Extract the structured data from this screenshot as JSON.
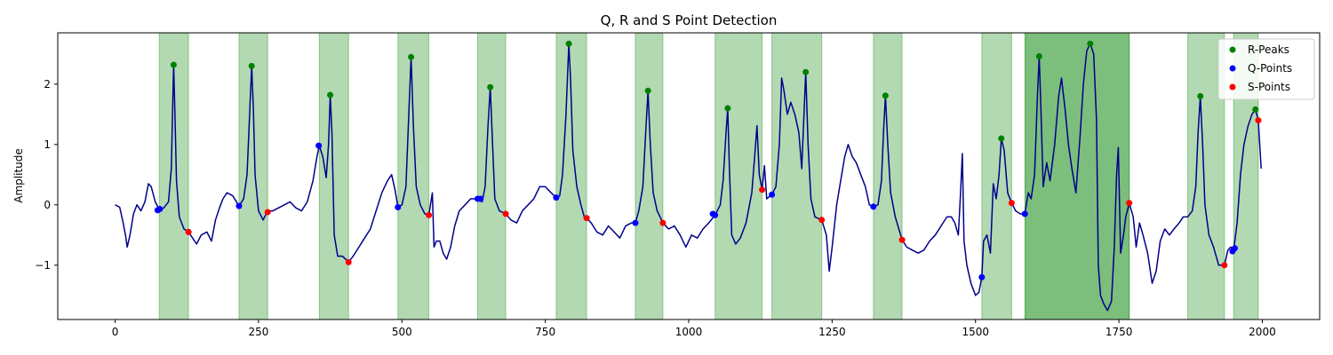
{
  "chart_data": {
    "type": "line",
    "title": "Q, R and S Point Detection",
    "xlabel": "",
    "ylabel": "Amplitude",
    "xlim": [
      -100,
      2100
    ],
    "ylim": [
      -1.9,
      2.85
    ],
    "xticks": [
      0,
      250,
      500,
      750,
      1000,
      1250,
      1500,
      1750,
      2000
    ],
    "yticks": [
      -1,
      0,
      1,
      2
    ],
    "grid": false,
    "legend_position": "top-right",
    "colors": {
      "signal": "#00008b",
      "r": "#008000",
      "q": "#0000ff",
      "s": "#ff0000",
      "band": "#008000"
    },
    "highlight_ranges": [
      [
        77,
        128
      ],
      [
        216,
        266
      ],
      [
        356,
        407
      ],
      [
        493,
        547
      ],
      [
        632,
        681
      ],
      [
        769,
        822
      ],
      [
        907,
        955
      ],
      [
        1046,
        1128
      ],
      [
        1145,
        1232
      ],
      [
        1322,
        1372
      ],
      [
        1511,
        1563
      ],
      [
        1586,
        1768
      ],
      [
        1587,
        1768
      ],
      [
        1870,
        1934
      ],
      [
        1950,
        1993
      ]
    ],
    "signal_nodes": [
      [
        0,
        0.0
      ],
      [
        8,
        -0.04
      ],
      [
        14,
        -0.3
      ],
      [
        18,
        -0.5
      ],
      [
        21,
        -0.7
      ],
      [
        26,
        -0.5
      ],
      [
        32,
        -0.15
      ],
      [
        38,
        0.0
      ],
      [
        45,
        -0.1
      ],
      [
        52,
        0.05
      ],
      [
        58,
        0.35
      ],
      [
        63,
        0.3
      ],
      [
        70,
        0.05
      ],
      [
        77,
        -0.08
      ],
      [
        85,
        -0.05
      ],
      [
        93,
        0.05
      ],
      [
        98,
        0.6
      ],
      [
        100,
        1.5
      ],
      [
        102,
        2.32
      ],
      [
        104,
        1.6
      ],
      [
        107,
        0.4
      ],
      [
        112,
        -0.2
      ],
      [
        120,
        -0.4
      ],
      [
        128,
        -0.45
      ],
      [
        135,
        -0.55
      ],
      [
        142,
        -0.65
      ],
      [
        150,
        -0.5
      ],
      [
        160,
        -0.45
      ],
      [
        168,
        -0.6
      ],
      [
        175,
        -0.25
      ],
      [
        182,
        -0.05
      ],
      [
        188,
        0.1
      ],
      [
        195,
        0.2
      ],
      [
        205,
        0.15
      ],
      [
        216,
        -0.02
      ],
      [
        224,
        0.1
      ],
      [
        230,
        0.5
      ],
      [
        234,
        1.4
      ],
      [
        238,
        2.3
      ],
      [
        241,
        1.6
      ],
      [
        244,
        0.5
      ],
      [
        250,
        -0.1
      ],
      [
        258,
        -0.25
      ],
      [
        266,
        -0.1
      ],
      [
        275,
        -0.1
      ],
      [
        285,
        -0.05
      ],
      [
        295,
        0.0
      ],
      [
        305,
        0.05
      ],
      [
        315,
        -0.05
      ],
      [
        325,
        -0.1
      ],
      [
        335,
        0.05
      ],
      [
        345,
        0.4
      ],
      [
        352,
        0.8
      ],
      [
        356,
        0.98
      ],
      [
        362,
        0.8
      ],
      [
        368,
        0.45
      ],
      [
        372,
        1.0
      ],
      [
        375,
        1.82
      ],
      [
        378,
        1.2
      ],
      [
        382,
        -0.5
      ],
      [
        388,
        -0.85
      ],
      [
        396,
        -0.85
      ],
      [
        402,
        -0.9
      ],
      [
        407,
        -0.95
      ],
      [
        415,
        -0.85
      ],
      [
        425,
        -0.7
      ],
      [
        435,
        -0.55
      ],
      [
        445,
        -0.4
      ],
      [
        455,
        -0.1
      ],
      [
        465,
        0.2
      ],
      [
        475,
        0.4
      ],
      [
        482,
        0.5
      ],
      [
        488,
        0.25
      ],
      [
        493,
        -0.04
      ],
      [
        500,
        0.0
      ],
      [
        507,
        0.3
      ],
      [
        512,
        1.5
      ],
      [
        516,
        2.45
      ],
      [
        520,
        1.3
      ],
      [
        525,
        0.3
      ],
      [
        532,
        0.0
      ],
      [
        540,
        -0.15
      ],
      [
        547,
        -0.17
      ],
      [
        553,
        0.2
      ],
      [
        556,
        -0.7
      ],
      [
        560,
        -0.6
      ],
      [
        566,
        -0.6
      ],
      [
        572,
        -0.8
      ],
      [
        578,
        -0.9
      ],
      [
        585,
        -0.7
      ],
      [
        592,
        -0.35
      ],
      [
        600,
        -0.1
      ],
      [
        610,
        0.0
      ],
      [
        620,
        0.1
      ],
      [
        632,
        0.1
      ],
      [
        640,
        0.05
      ],
      [
        645,
        0.3
      ],
      [
        650,
        1.3
      ],
      [
        654,
        1.95
      ],
      [
        658,
        1.0
      ],
      [
        662,
        0.1
      ],
      [
        670,
        -0.1
      ],
      [
        681,
        -0.15
      ],
      [
        690,
        -0.25
      ],
      [
        700,
        -0.3
      ],
      [
        710,
        -0.1
      ],
      [
        720,
        0.0
      ],
      [
        730,
        0.1
      ],
      [
        740,
        0.3
      ],
      [
        750,
        0.3
      ],
      [
        760,
        0.2
      ],
      [
        769,
        0.12
      ],
      [
        775,
        0.15
      ],
      [
        780,
        0.5
      ],
      [
        786,
        1.5
      ],
      [
        791,
        2.67
      ],
      [
        794,
        2.1
      ],
      [
        798,
        0.9
      ],
      [
        805,
        0.3
      ],
      [
        812,
        0.0
      ],
      [
        818,
        -0.2
      ],
      [
        822,
        -0.22
      ],
      [
        830,
        -0.3
      ],
      [
        840,
        -0.45
      ],
      [
        850,
        -0.5
      ],
      [
        860,
        -0.35
      ],
      [
        870,
        -0.45
      ],
      [
        880,
        -0.55
      ],
      [
        890,
        -0.35
      ],
      [
        900,
        -0.3
      ],
      [
        907,
        -0.3
      ],
      [
        913,
        -0.1
      ],
      [
        920,
        0.3
      ],
      [
        925,
        1.2
      ],
      [
        929,
        1.89
      ],
      [
        933,
        1.0
      ],
      [
        938,
        0.2
      ],
      [
        945,
        -0.1
      ],
      [
        955,
        -0.3
      ],
      [
        965,
        -0.4
      ],
      [
        975,
        -0.35
      ],
      [
        985,
        -0.5
      ],
      [
        995,
        -0.7
      ],
      [
        1005,
        -0.5
      ],
      [
        1015,
        -0.55
      ],
      [
        1025,
        -0.4
      ],
      [
        1035,
        -0.3
      ],
      [
        1046,
        -0.17
      ],
      [
        1055,
        0.0
      ],
      [
        1060,
        0.4
      ],
      [
        1065,
        1.2
      ],
      [
        1068,
        1.6
      ],
      [
        1071,
        0.6
      ],
      [
        1075,
        -0.5
      ],
      [
        1082,
        -0.65
      ],
      [
        1090,
        -0.55
      ],
      [
        1100,
        -0.3
      ],
      [
        1110,
        0.2
      ],
      [
        1115,
        0.8
      ],
      [
        1119,
        1.31
      ],
      [
        1123,
        0.5
      ],
      [
        1128,
        0.25
      ],
      [
        1132,
        0.65
      ],
      [
        1136,
        0.1
      ],
      [
        1145,
        0.17
      ],
      [
        1152,
        0.3
      ],
      [
        1158,
        1.0
      ],
      [
        1162,
        2.1
      ],
      [
        1166,
        1.9
      ],
      [
        1172,
        1.5
      ],
      [
        1178,
        1.7
      ],
      [
        1185,
        1.5
      ],
      [
        1192,
        1.2
      ],
      [
        1197,
        0.6
      ],
      [
        1201,
        1.5
      ],
      [
        1204,
        2.2
      ],
      [
        1208,
        1.0
      ],
      [
        1213,
        0.1
      ],
      [
        1220,
        -0.2
      ],
      [
        1232,
        -0.25
      ],
      [
        1240,
        -0.5
      ],
      [
        1245,
        -1.1
      ],
      [
        1250,
        -0.7
      ],
      [
        1258,
        0.0
      ],
      [
        1265,
        0.4
      ],
      [
        1272,
        0.8
      ],
      [
        1278,
        1.0
      ],
      [
        1285,
        0.8
      ],
      [
        1292,
        0.7
      ],
      [
        1300,
        0.5
      ],
      [
        1308,
        0.3
      ],
      [
        1315,
        0.0
      ],
      [
        1322,
        -0.03
      ],
      [
        1330,
        0.0
      ],
      [
        1336,
        0.4
      ],
      [
        1340,
        1.3
      ],
      [
        1343,
        1.81
      ],
      [
        1347,
        1.0
      ],
      [
        1352,
        0.2
      ],
      [
        1360,
        -0.2
      ],
      [
        1372,
        -0.58
      ],
      [
        1380,
        -0.7
      ],
      [
        1390,
        -0.75
      ],
      [
        1400,
        -0.8
      ],
      [
        1410,
        -0.75
      ],
      [
        1420,
        -0.6
      ],
      [
        1430,
        -0.5
      ],
      [
        1440,
        -0.35
      ],
      [
        1450,
        -0.2
      ],
      [
        1458,
        -0.2
      ],
      [
        1464,
        -0.3
      ],
      [
        1470,
        -0.5
      ],
      [
        1474,
        0.2
      ],
      [
        1477,
        0.85
      ],
      [
        1480,
        -0.6
      ],
      [
        1485,
        -1.0
      ],
      [
        1492,
        -1.3
      ],
      [
        1500,
        -1.5
      ],
      [
        1506,
        -1.45
      ],
      [
        1511,
        -1.2
      ],
      [
        1514,
        -0.6
      ],
      [
        1520,
        -0.5
      ],
      [
        1526,
        -0.8
      ],
      [
        1531,
        0.35
      ],
      [
        1536,
        0.1
      ],
      [
        1541,
        0.5
      ],
      [
        1545,
        1.1
      ],
      [
        1550,
        0.9
      ],
      [
        1556,
        0.2
      ],
      [
        1563,
        0.03
      ],
      [
        1570,
        -0.1
      ],
      [
        1578,
        -0.15
      ],
      [
        1586,
        -0.15
      ],
      [
        1592,
        0.2
      ],
      [
        1597,
        0.1
      ],
      [
        1603,
        0.5
      ],
      [
        1608,
        1.8
      ],
      [
        1611,
        2.46
      ],
      [
        1614,
        1.6
      ],
      [
        1618,
        0.3
      ],
      [
        1624,
        0.7
      ],
      [
        1630,
        0.4
      ],
      [
        1638,
        1.0
      ],
      [
        1645,
        1.8
      ],
      [
        1650,
        2.1
      ],
      [
        1656,
        1.6
      ],
      [
        1662,
        1.0
      ],
      [
        1668,
        0.6
      ],
      [
        1675,
        0.2
      ],
      [
        1682,
        1.1
      ],
      [
        1688,
        2.0
      ],
      [
        1694,
        2.55
      ],
      [
        1700,
        2.67
      ],
      [
        1706,
        2.5
      ],
      [
        1711,
        1.4
      ],
      [
        1714,
        -1.0
      ],
      [
        1718,
        -1.5
      ],
      [
        1724,
        -1.65
      ],
      [
        1730,
        -1.75
      ],
      [
        1737,
        -1.6
      ],
      [
        1742,
        -0.7
      ],
      [
        1746,
        0.5
      ],
      [
        1749,
        0.95
      ],
      [
        1753,
        -0.8
      ],
      [
        1758,
        -0.5
      ],
      [
        1762,
        -0.2
      ],
      [
        1768,
        0.03
      ],
      [
        1775,
        -0.2
      ],
      [
        1780,
        -0.7
      ],
      [
        1786,
        -0.3
      ],
      [
        1792,
        -0.5
      ],
      [
        1800,
        -0.8
      ],
      [
        1808,
        -1.3
      ],
      [
        1815,
        -1.1
      ],
      [
        1822,
        -0.6
      ],
      [
        1830,
        -0.4
      ],
      [
        1838,
        -0.5
      ],
      [
        1846,
        -0.4
      ],
      [
        1855,
        -0.3
      ],
      [
        1862,
        -0.2
      ],
      [
        1870,
        -0.2
      ],
      [
        1878,
        -0.1
      ],
      [
        1884,
        0.3
      ],
      [
        1888,
        1.2
      ],
      [
        1892,
        1.8
      ],
      [
        1896,
        1.0
      ],
      [
        1900,
        0.0
      ],
      [
        1907,
        -0.5
      ],
      [
        1915,
        -0.7
      ],
      [
        1924,
        -1.0
      ],
      [
        1934,
        -1.0
      ],
      [
        1940,
        -0.75
      ],
      [
        1945,
        -0.7
      ],
      [
        1950,
        -0.75
      ],
      [
        1956,
        -0.3
      ],
      [
        1962,
        0.5
      ],
      [
        1968,
        1.0
      ],
      [
        1975,
        1.3
      ],
      [
        1982,
        1.5
      ],
      [
        1988,
        1.58
      ],
      [
        1993,
        1.4
      ],
      [
        1998,
        0.6
      ]
    ],
    "series": [
      {
        "name": "R-Peaks",
        "marker": "r",
        "points": [
          [
            102,
            2.32
          ],
          [
            238,
            2.3
          ],
          [
            375,
            1.82
          ],
          [
            516,
            2.45
          ],
          [
            654,
            1.95
          ],
          [
            791,
            2.67
          ],
          [
            929,
            1.89
          ],
          [
            1068,
            1.6
          ],
          [
            1204,
            2.2
          ],
          [
            1343,
            1.81
          ],
          [
            1545,
            1.1
          ],
          [
            1611,
            2.46
          ],
          [
            1700,
            2.67
          ],
          [
            1892,
            1.8
          ],
          [
            1988,
            1.58
          ]
        ]
      },
      {
        "name": "Q-Points",
        "marker": "q",
        "points": [
          [
            74,
            -0.09
          ],
          [
            78,
            -0.07
          ],
          [
            216,
            -0.02
          ],
          [
            355,
            0.98
          ],
          [
            493,
            -0.04
          ],
          [
            632,
            0.1
          ],
          [
            637,
            0.1
          ],
          [
            769,
            0.12
          ],
          [
            907,
            -0.3
          ],
          [
            1042,
            -0.15
          ],
          [
            1046,
            -0.17
          ],
          [
            1145,
            0.17
          ],
          [
            1322,
            -0.03
          ],
          [
            1511,
            -1.2
          ],
          [
            1586,
            -0.15
          ],
          [
            1948,
            -0.77
          ],
          [
            1952,
            -0.72
          ]
        ]
      },
      {
        "name": "S-Points",
        "marker": "s",
        "points": [
          [
            128,
            -0.45
          ],
          [
            266,
            -0.12
          ],
          [
            407,
            -0.95
          ],
          [
            547,
            -0.17
          ],
          [
            681,
            -0.15
          ],
          [
            822,
            -0.22
          ],
          [
            955,
            -0.3
          ],
          [
            1128,
            0.25
          ],
          [
            1232,
            -0.25
          ],
          [
            1372,
            -0.58
          ],
          [
            1563,
            0.03
          ],
          [
            1768,
            0.03
          ],
          [
            1934,
            -1.0
          ],
          [
            1993,
            1.4
          ]
        ]
      }
    ]
  }
}
